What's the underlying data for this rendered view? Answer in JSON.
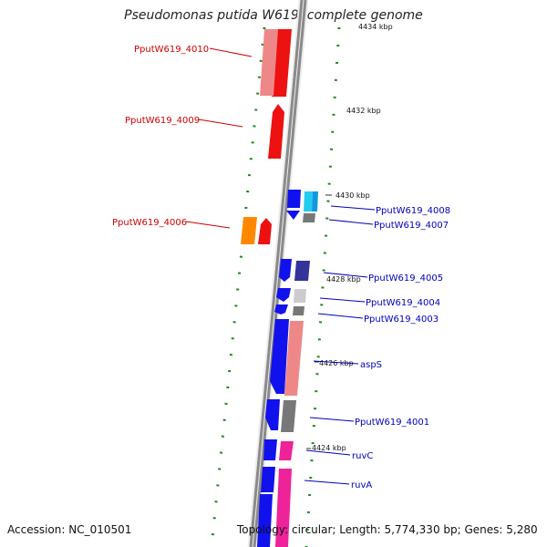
{
  "title": "Pseudomonas putida W619, complete genome",
  "accession": "Accession: NC_010501",
  "topology": "Topology: circular; Length: 5,774,330 bp; Genes: 5,280",
  "kbp_labels": [
    "4434 kbp",
    "4432 kbp",
    "4430 kbp",
    "4428 kbp",
    "4426 kbp",
    "4424 kbp"
  ],
  "genes_left": [
    "PputW619_4010",
    "PputW619_4009",
    "PputW619_4006"
  ],
  "genes_right": [
    "PputW619_4008",
    "PputW619_4007",
    "PputW619_4005",
    "PputW619_4004",
    "PputW619_4003",
    "aspS",
    "PputW619_4001",
    "ruvC",
    "ruvA"
  ],
  "colors": {
    "red": "#ee1111",
    "pink": "#ee8888",
    "blue": "#1111ee",
    "orange": "#ff8800",
    "magenta": "#ee2299",
    "gray": "#777777",
    "lightgray": "#cccccc",
    "cyan": "#22ccee",
    "navy": "#333399",
    "label_red": "#cc0000",
    "label_blue": "#0000bb",
    "tick_green": "#228822"
  }
}
